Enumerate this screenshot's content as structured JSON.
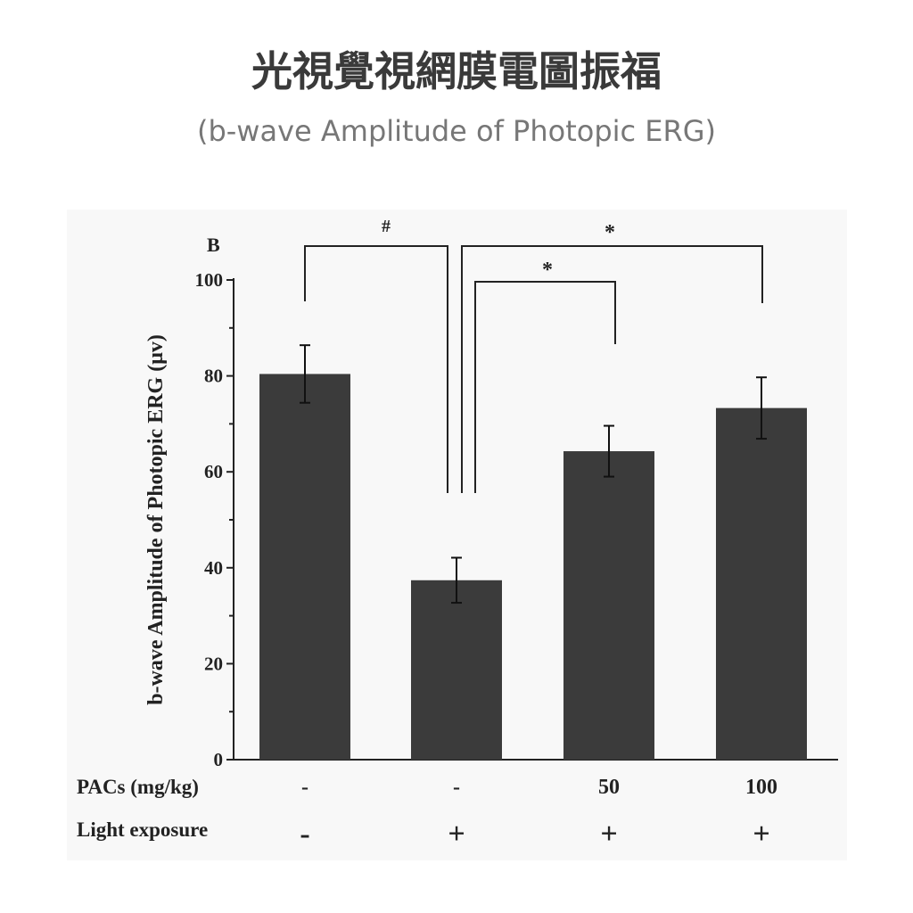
{
  "chart_data": {
    "type": "bar",
    "title": "光視覺視網膜電圖振福",
    "subtitle": "(b-wave Amplitude of Photopic ERG)",
    "panel_label": "B",
    "ylabel": "b-wave Amplitude of Photopic ERG (μv)",
    "ylim": [
      0,
      100
    ],
    "yticks": [
      0,
      20,
      40,
      60,
      80,
      100
    ],
    "color": "#3b3b3b",
    "values": [
      80.4,
      37.4,
      64.3,
      73.3
    ],
    "errors": [
      6,
      4.7,
      5.3,
      6.4
    ],
    "category_rows": [
      {
        "label": "PACs (mg/kg)",
        "values": [
          "-",
          "-",
          "50",
          "100"
        ]
      },
      {
        "label": "Light exposure",
        "values": [
          "-",
          "+",
          "+",
          "+"
        ]
      }
    ],
    "annotations": [
      "#",
      "*",
      "*"
    ]
  }
}
